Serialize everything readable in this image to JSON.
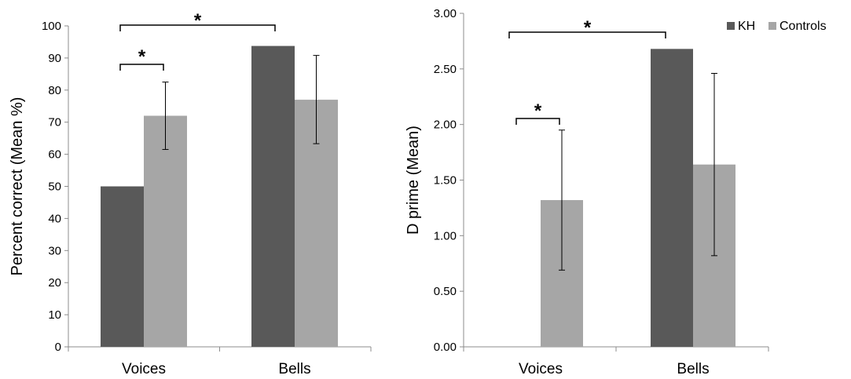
{
  "colors": {
    "KH": "#595959",
    "Controls": "#a6a6a6",
    "axis": "#8c8c8c",
    "errorbar": "#000000"
  },
  "chart_data": [
    {
      "type": "bar",
      "categories": [
        "Voices",
        "Bells"
      ],
      "ylabel": "Percent correct (Mean %)",
      "ylim": [
        0,
        100
      ],
      "yticks": [
        "0",
        "10",
        "20",
        "30",
        "40",
        "50",
        "60",
        "70",
        "80",
        "90",
        "100"
      ],
      "series": [
        {
          "name": "KH",
          "values": [
            50,
            93.75
          ]
        },
        {
          "name": "Controls",
          "values": [
            72,
            77
          ],
          "error_low": [
            61.5,
            63.3
          ],
          "error_high": [
            82.5,
            90.8
          ]
        }
      ],
      "significance": [
        {
          "label": "*",
          "from": "Voices KH",
          "to": "Voices Controls"
        },
        {
          "label": "*",
          "from": "Voices KH",
          "to": "Bells KH"
        }
      ]
    },
    {
      "type": "bar",
      "categories": [
        "Voices",
        "Bells"
      ],
      "ylabel": "D prime (Mean)",
      "ylim": [
        0,
        3
      ],
      "yticks": [
        "0.00",
        "0.50",
        "1.00",
        "1.50",
        "2.00",
        "2.50",
        "3.00"
      ],
      "legend": {
        "position": "top-right",
        "entries": [
          "KH",
          "Controls"
        ]
      },
      "series": [
        {
          "name": "KH",
          "values": [
            0,
            2.68
          ]
        },
        {
          "name": "Controls",
          "values": [
            1.32,
            1.64
          ],
          "error_low": [
            0.69,
            0.82
          ],
          "error_high": [
            1.95,
            2.46
          ]
        }
      ],
      "significance": [
        {
          "label": "*",
          "from": "Voices KH",
          "to": "Voices Controls"
        },
        {
          "label": "*",
          "from": "Voices KH",
          "to": "Bells KH"
        }
      ]
    }
  ]
}
